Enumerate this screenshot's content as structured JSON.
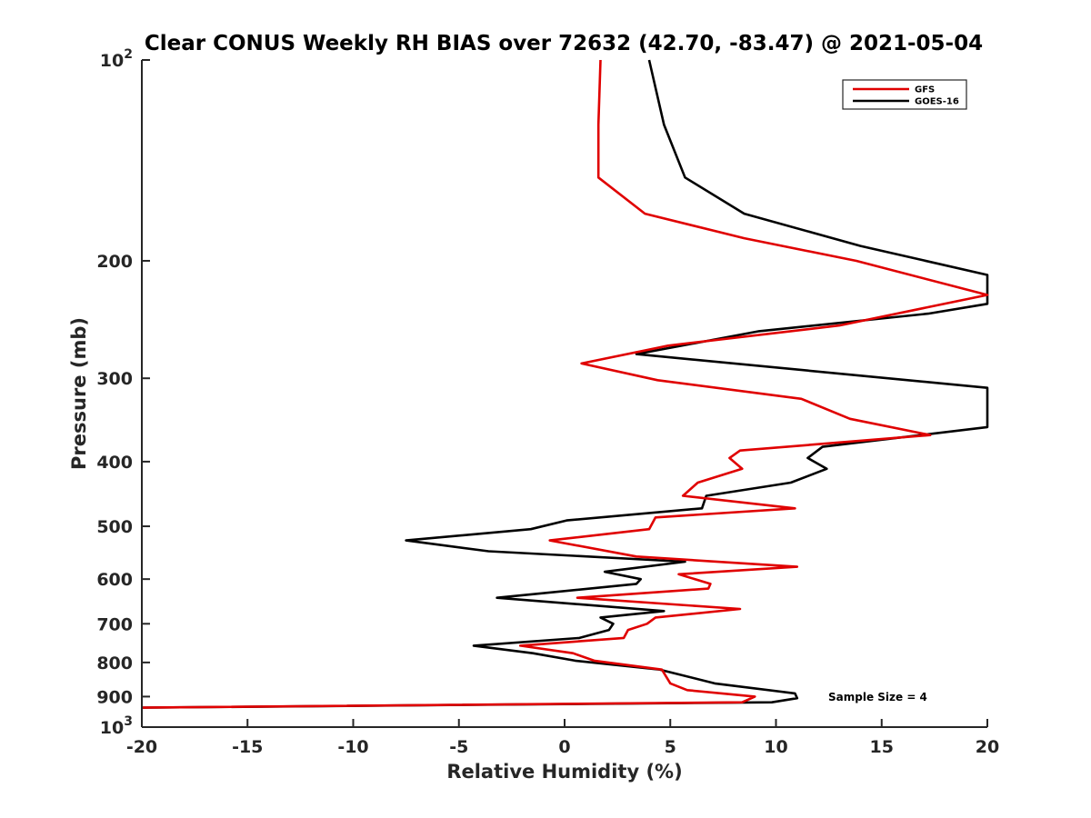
{
  "chart_data": {
    "type": "line",
    "title": "Clear CONUS Weekly RH BIAS over 72632 (42.70, -83.47) @ 2021-05-04",
    "xlabel": "Relative Humidity (%)",
    "ylabel": "Pressure (mb)",
    "xlim": [
      -20,
      20
    ],
    "ylim": [
      100,
      1000
    ],
    "yscale": "log",
    "y_reversed": true,
    "grid": false,
    "legend_position": "top-right",
    "x_ticks": [
      "-20",
      "-15",
      "-10",
      "-5",
      "0",
      "5",
      "10",
      "15",
      "20"
    ],
    "y_ticks": [
      {
        "value": 100,
        "base": "10",
        "exp": "2"
      },
      {
        "value": 200,
        "label": "200"
      },
      {
        "value": 300,
        "label": "300"
      },
      {
        "value": 400,
        "label": "400"
      },
      {
        "value": 500,
        "label": "500"
      },
      {
        "value": 600,
        "label": "600"
      },
      {
        "value": 700,
        "label": "700"
      },
      {
        "value": 800,
        "label": "800"
      },
      {
        "value": 900,
        "label": "900"
      },
      {
        "value": 1000,
        "base": "10",
        "exp": "3"
      }
    ],
    "annotation": "Sample Size = 4",
    "series": [
      {
        "name": "GFS",
        "color": "#e00000",
        "points": [
          [
            1.7,
            100
          ],
          [
            1.6,
            125
          ],
          [
            1.6,
            150
          ],
          [
            3.8,
            170
          ],
          [
            8.5,
            185
          ],
          [
            13.8,
            200
          ],
          [
            20,
            225
          ],
          [
            13,
            250
          ],
          [
            4.9,
            268
          ],
          [
            0.8,
            285
          ],
          [
            4.4,
            302
          ],
          [
            11.2,
            322
          ],
          [
            13.5,
            345
          ],
          [
            17.3,
            365
          ],
          [
            8.3,
            385
          ],
          [
            7.8,
            395
          ],
          [
            8.4,
            410
          ],
          [
            6.3,
            430
          ],
          [
            5.6,
            450
          ],
          [
            10.9,
            470
          ],
          [
            4.3,
            485
          ],
          [
            4,
            505
          ],
          [
            -0.7,
            525
          ],
          [
            3.4,
            555
          ],
          [
            11.0,
            575
          ],
          [
            5.4,
            590
          ],
          [
            6.9,
            610
          ],
          [
            6.8,
            620
          ],
          [
            0.6,
            640
          ],
          [
            8.3,
            665
          ],
          [
            4.3,
            685
          ],
          [
            3.9,
            700
          ],
          [
            3.0,
            715
          ],
          [
            2.8,
            735
          ],
          [
            -2.1,
            755
          ],
          [
            0.4,
            775
          ],
          [
            1.4,
            795
          ],
          [
            4.6,
            820
          ],
          [
            5.0,
            860
          ],
          [
            5.8,
            880
          ],
          [
            9.0,
            900
          ],
          [
            8.4,
            918
          ],
          [
            -20,
            935
          ]
        ]
      },
      {
        "name": "GOES-16",
        "color": "#000000",
        "points": [
          [
            4.0,
            100
          ],
          [
            4.7,
            125
          ],
          [
            5.7,
            150
          ],
          [
            8.5,
            170
          ],
          [
            14.0,
            190
          ],
          [
            20,
            210
          ],
          [
            20,
            232
          ],
          [
            17.2,
            240
          ],
          [
            9.2,
            255
          ],
          [
            3.4,
            276
          ],
          [
            20,
            310
          ],
          [
            20,
            325
          ],
          [
            20,
            355
          ],
          [
            12.2,
            380
          ],
          [
            11.5,
            395
          ],
          [
            12.4,
            410
          ],
          [
            10.7,
            430
          ],
          [
            6.7,
            450
          ],
          [
            6.5,
            470
          ],
          [
            0.1,
            490
          ],
          [
            -1.6,
            505
          ],
          [
            -7.5,
            525
          ],
          [
            -3.6,
            545
          ],
          [
            5.7,
            565
          ],
          [
            1.9,
            585
          ],
          [
            3.6,
            600
          ],
          [
            3.4,
            610
          ],
          [
            -3.2,
            640
          ],
          [
            4.7,
            670
          ],
          [
            1.7,
            685
          ],
          [
            2.3,
            700
          ],
          [
            2.1,
            715
          ],
          [
            0.7,
            735
          ],
          [
            -4.3,
            755
          ],
          [
            -1.5,
            775
          ],
          [
            0.5,
            795
          ],
          [
            4.5,
            820
          ],
          [
            7.1,
            860
          ],
          [
            10.9,
            890
          ],
          [
            11.0,
            905
          ],
          [
            9.8,
            918
          ],
          [
            -20,
            935
          ]
        ]
      }
    ]
  }
}
